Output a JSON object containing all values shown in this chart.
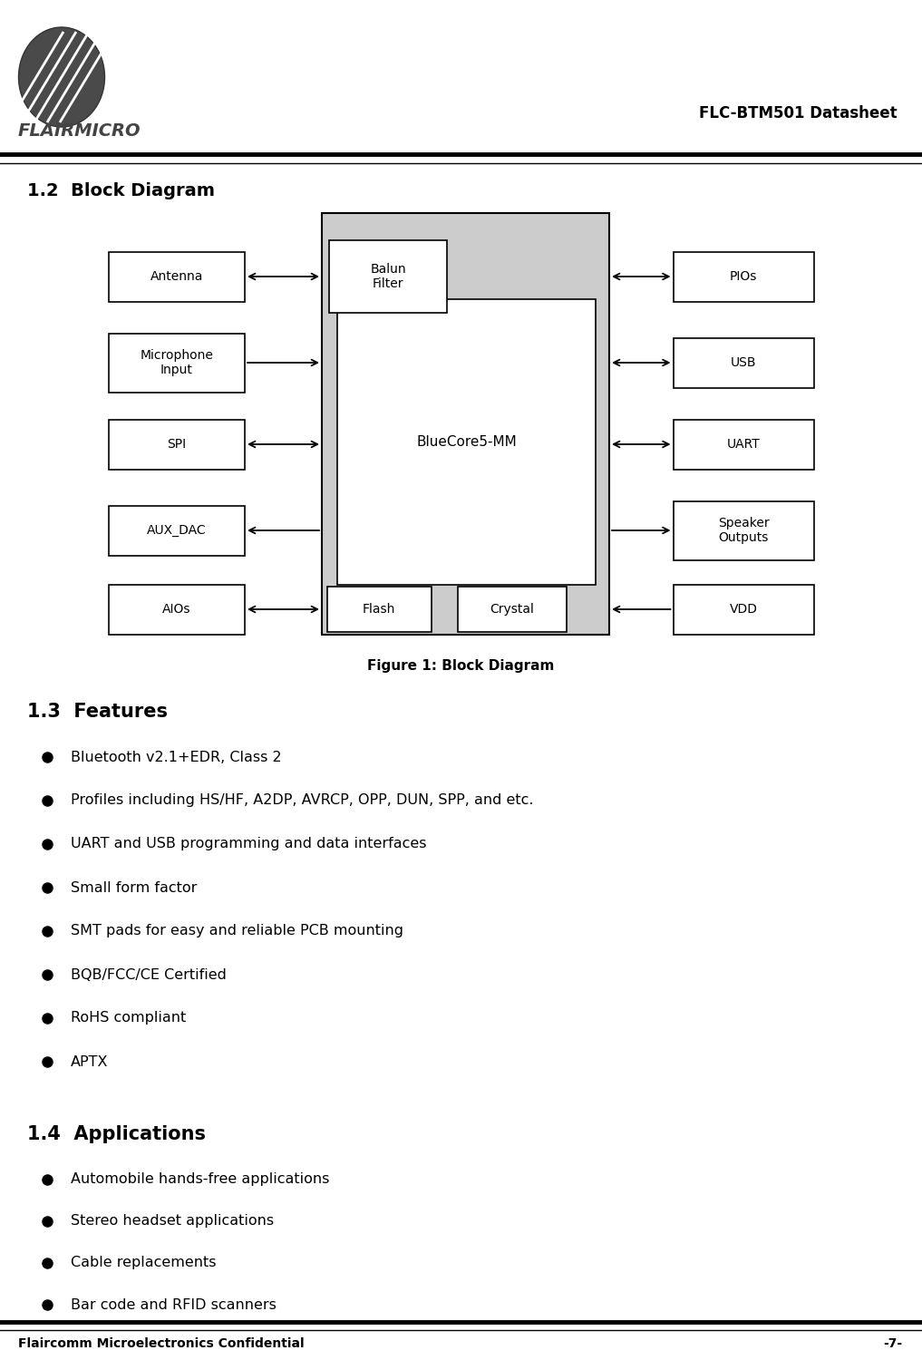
{
  "title_header": "FLC-BTM501 Datasheet",
  "logo_text": "FLAIRMICRO",
  "section_block": "1.2  Block Diagram",
  "figure_caption": "Figure 1: Block Diagram",
  "section_features": "1.3  Features",
  "features": [
    "Bluetooth v2.1+EDR, Class 2",
    "Profiles including HS/HF, A2DP, AVRCP, OPP, DUN, SPP, and etc.",
    "UART and USB programming and data interfaces",
    "Small form factor",
    "SMT pads for easy and reliable PCB mounting",
    "BQB/FCC/CE Certified",
    "RoHS compliant",
    "APTX"
  ],
  "section_applications": "1.4  Applications",
  "applications": [
    "Automobile hands-free applications",
    "Stereo headset applications",
    "Cable replacements",
    "Bar code and RFID scanners"
  ],
  "footer_left": "Flaircomm Microelectronics Confidential",
  "footer_right": "-7-",
  "bg_color": "#ffffff"
}
